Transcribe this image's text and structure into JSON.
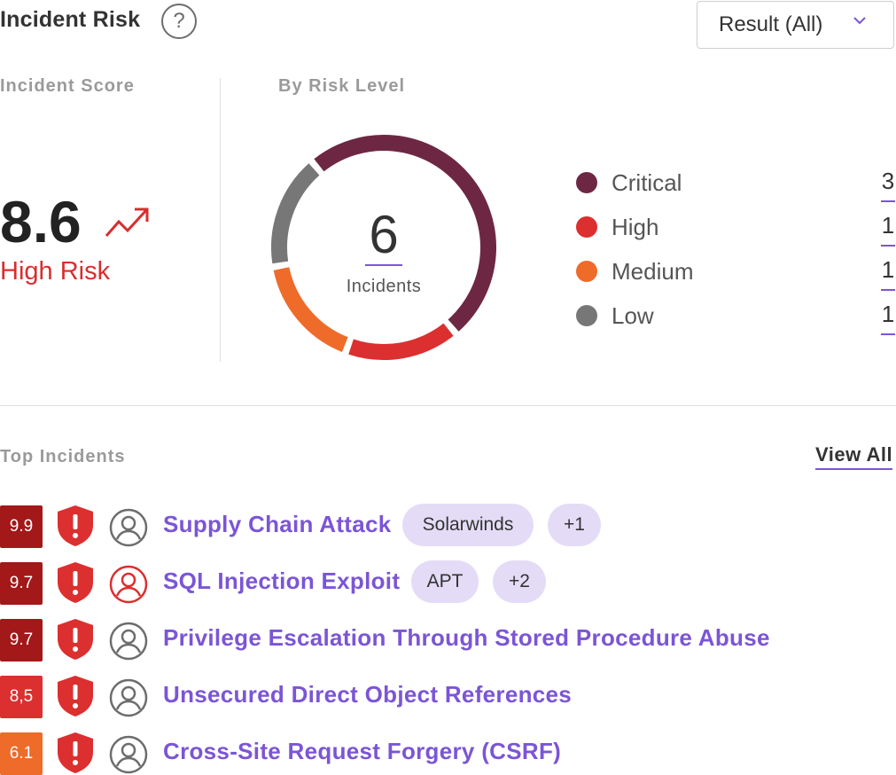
{
  "header": {
    "title": "Incident Risk",
    "help_icon_glyph": "?",
    "filter": {
      "label": "Result (All)",
      "icon": "chevron-down-icon"
    }
  },
  "score": {
    "label": "Incident Score",
    "value": "8.6",
    "level": "High Risk",
    "trend_icon": "trend-up-icon",
    "color": "#d92d2d"
  },
  "risk_level": {
    "label": "By Risk Level",
    "total": "6",
    "total_caption": "Incidents",
    "legend": [
      {
        "label": "Critical",
        "count": "3",
        "color": "#6e2742"
      },
      {
        "label": "High",
        "count": "1",
        "color": "#dc2f2f"
      },
      {
        "label": "Medium",
        "count": "1",
        "color": "#ee6b2a"
      },
      {
        "label": "Low",
        "count": "1",
        "color": "#777777"
      }
    ]
  },
  "top_incidents": {
    "label": "Top Incidents",
    "view_all": "View All",
    "items": [
      {
        "score": "9.9",
        "score_color": "#a31818",
        "user_alert": false,
        "title": "Supply Chain Attack",
        "tags": [
          "Solarwinds",
          "+1"
        ]
      },
      {
        "score": "9.7",
        "score_color": "#a31818",
        "user_alert": true,
        "title": "SQL Injection Exploit",
        "tags": [
          "APT",
          "+2"
        ]
      },
      {
        "score": "9.7",
        "score_color": "#a31818",
        "user_alert": false,
        "title": "Privilege Escalation Through Stored Procedure Abuse",
        "tags": []
      },
      {
        "score": "8,5",
        "score_color": "#dc2f2f",
        "user_alert": false,
        "title": "Unsecured Direct Object References",
        "tags": []
      },
      {
        "score": "6.1",
        "score_color": "#ee6b2a",
        "user_alert": false,
        "title": "Cross-Site Request Forgery (CSRF)",
        "tags": []
      }
    ]
  }
}
